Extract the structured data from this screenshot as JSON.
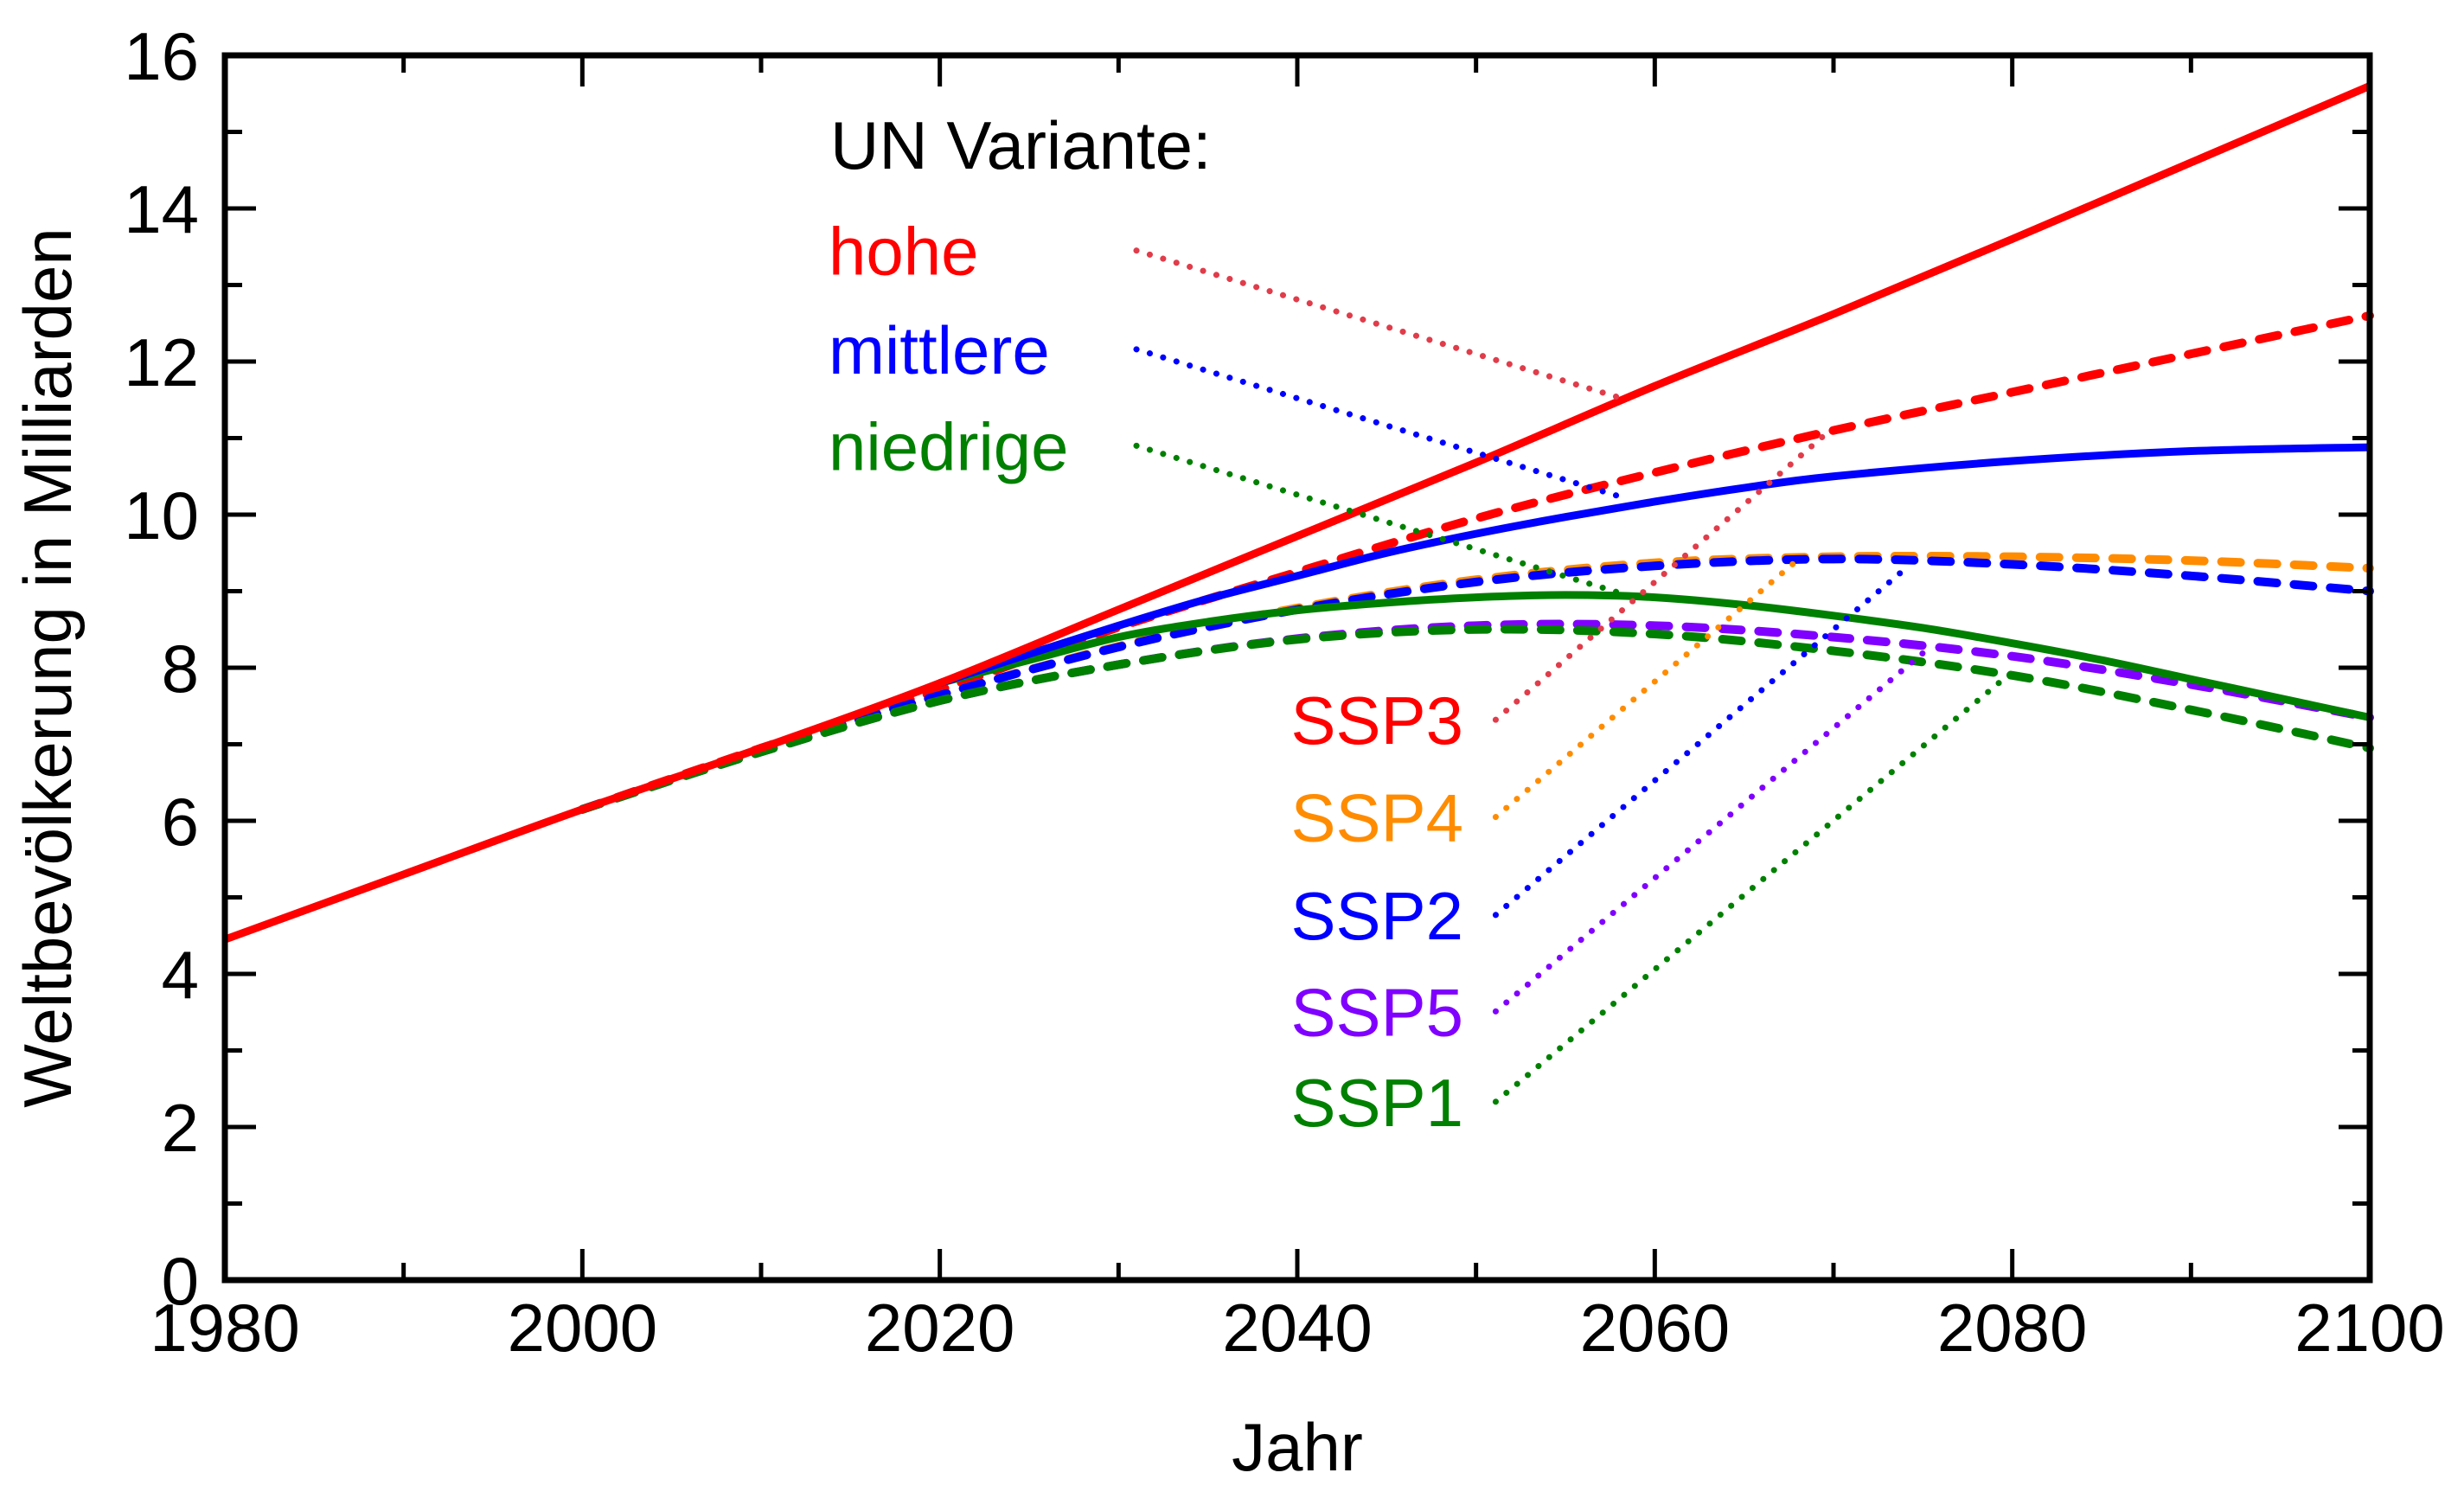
{
  "chart_data": {
    "type": "line",
    "title": "",
    "xlabel": "Jahr",
    "ylabel": "Weltbevölkerung in Milliarden",
    "xlim": [
      1980,
      2100
    ],
    "ylim": [
      0,
      16
    ],
    "xticks": [
      1980,
      2000,
      2020,
      2040,
      2060,
      2080,
      2100
    ],
    "xtick_labels": [
      "1980",
      "2000",
      "2020",
      "2040",
      "2060",
      "2080",
      "2100"
    ],
    "yticks": [
      0,
      2,
      4,
      6,
      8,
      10,
      12,
      14,
      16
    ],
    "ytick_labels": [
      "0",
      "2",
      "4",
      "6",
      "8",
      "10",
      "12",
      "14",
      "16"
    ],
    "x_minor_step": 10,
    "y_minor_step": 1,
    "grid": false,
    "legend_heading": "UN Variante:",
    "series": [
      {
        "name": "hohe",
        "group": "UN",
        "style": "solid",
        "color": "#ff0000",
        "x": [
          1980,
          1990,
          2000,
          2010,
          2020,
          2030,
          2040,
          2050,
          2060,
          2070,
          2080,
          2090,
          2100
        ],
        "values": [
          4.45,
          5.3,
          6.15,
          6.95,
          7.8,
          8.76,
          9.72,
          10.68,
          11.68,
          12.62,
          13.6,
          14.6,
          15.6
        ]
      },
      {
        "name": "mittlere",
        "group": "UN",
        "style": "solid",
        "color": "#0000ff",
        "x": [
          2020,
          2025,
          2030,
          2035,
          2040,
          2045,
          2050,
          2055,
          2060,
          2065,
          2070,
          2080,
          2090,
          2100
        ],
        "values": [
          7.8,
          8.18,
          8.55,
          8.9,
          9.2,
          9.5,
          9.75,
          9.97,
          10.17,
          10.35,
          10.5,
          10.7,
          10.83,
          10.88
        ]
      },
      {
        "name": "niedrige",
        "group": "UN",
        "style": "solid",
        "color": "#008000",
        "x": [
          2020,
          2025,
          2030,
          2035,
          2040,
          2045,
          2050,
          2055,
          2060,
          2065,
          2070,
          2075,
          2080,
          2085,
          2090,
          2095,
          2100
        ],
        "values": [
          7.8,
          8.1,
          8.4,
          8.6,
          8.75,
          8.85,
          8.92,
          8.95,
          8.92,
          8.82,
          8.68,
          8.52,
          8.32,
          8.1,
          7.85,
          7.6,
          7.35
        ]
      },
      {
        "name": "SSP3",
        "group": "SSP",
        "style": "dashed",
        "color": "#ff0000",
        "x": [
          2000,
          2010,
          2020,
          2030,
          2040,
          2050,
          2060,
          2070,
          2080,
          2090,
          2100
        ],
        "values": [
          6.15,
          6.95,
          7.71,
          8.53,
          9.25,
          9.95,
          10.55,
          11.1,
          11.6,
          12.1,
          12.6
        ]
      },
      {
        "name": "SSP4",
        "group": "SSP",
        "style": "dashed",
        "color": "#ff8c00",
        "x": [
          2000,
          2010,
          2020,
          2030,
          2040,
          2050,
          2060,
          2070,
          2080,
          2090,
          2100
        ],
        "values": [
          6.15,
          6.92,
          7.64,
          8.28,
          8.78,
          9.15,
          9.37,
          9.45,
          9.45,
          9.4,
          9.3
        ]
      },
      {
        "name": "SSP2",
        "group": "SSP",
        "style": "dashed",
        "color": "#0000ff",
        "x": [
          2000,
          2010,
          2020,
          2030,
          2040,
          2050,
          2060,
          2070,
          2080,
          2090,
          2100
        ],
        "values": [
          6.15,
          6.92,
          7.64,
          8.27,
          8.76,
          9.12,
          9.33,
          9.42,
          9.35,
          9.2,
          9.0
        ]
      },
      {
        "name": "SSP5",
        "group": "SSP",
        "style": "dashed",
        "color": "#8000ff",
        "x": [
          2000,
          2010,
          2020,
          2030,
          2040,
          2050,
          2060,
          2070,
          2080,
          2090,
          2100
        ],
        "values": [
          6.15,
          6.9,
          7.57,
          8.04,
          8.38,
          8.55,
          8.55,
          8.4,
          8.15,
          7.78,
          7.35
        ]
      },
      {
        "name": "SSP1",
        "group": "SSP",
        "style": "dashed",
        "color": "#008000",
        "x": [
          2000,
          2010,
          2020,
          2030,
          2040,
          2050,
          2060,
          2070,
          2080,
          2090,
          2100
        ],
        "values": [
          6.15,
          6.9,
          7.57,
          8.04,
          8.37,
          8.5,
          8.44,
          8.22,
          7.9,
          7.45,
          6.95
        ]
      }
    ],
    "labels": [
      {
        "text": "hohe",
        "color": "#ff0000",
        "leader_color": "#e03c4a",
        "anchor": [
          2031.0,
          13.45
        ],
        "target": [
          2058.0,
          11.53
        ]
      },
      {
        "text": "mittlere",
        "color": "#0000ff",
        "leader_color": "#0000ff",
        "anchor": [
          2031.0,
          12.16
        ],
        "target": [
          2058.0,
          10.24
        ]
      },
      {
        "text": "niedrige",
        "color": "#008000",
        "leader_color": "#008000",
        "anchor": [
          2031.0,
          10.9
        ],
        "target": [
          2058.0,
          8.98
        ]
      },
      {
        "text": "SSP3",
        "color": "#ff0000",
        "leader_color": "#e03c4a",
        "anchor": [
          2051.1,
          7.32
        ],
        "target": [
          2069.4,
          11.02
        ]
      },
      {
        "text": "SSP4",
        "color": "#ff8c00",
        "leader_color": "#ff8c00",
        "anchor": [
          2051.1,
          6.05
        ],
        "target": [
          2068.1,
          9.43
        ]
      },
      {
        "text": "SSP2",
        "color": "#0000ff",
        "leader_color": "#0000ff",
        "anchor": [
          2051.1,
          4.77
        ],
        "target": [
          2074.0,
          9.29
        ]
      },
      {
        "text": "SSP5",
        "color": "#8000ff",
        "leader_color": "#8000ff",
        "anchor": [
          2051.1,
          3.51
        ],
        "target": [
          2075.2,
          8.23
        ]
      },
      {
        "text": "SSP1",
        "color": "#008000",
        "leader_color": "#008000",
        "anchor": [
          2051.1,
          2.33
        ],
        "target": [
          2079.4,
          7.83
        ]
      }
    ]
  }
}
